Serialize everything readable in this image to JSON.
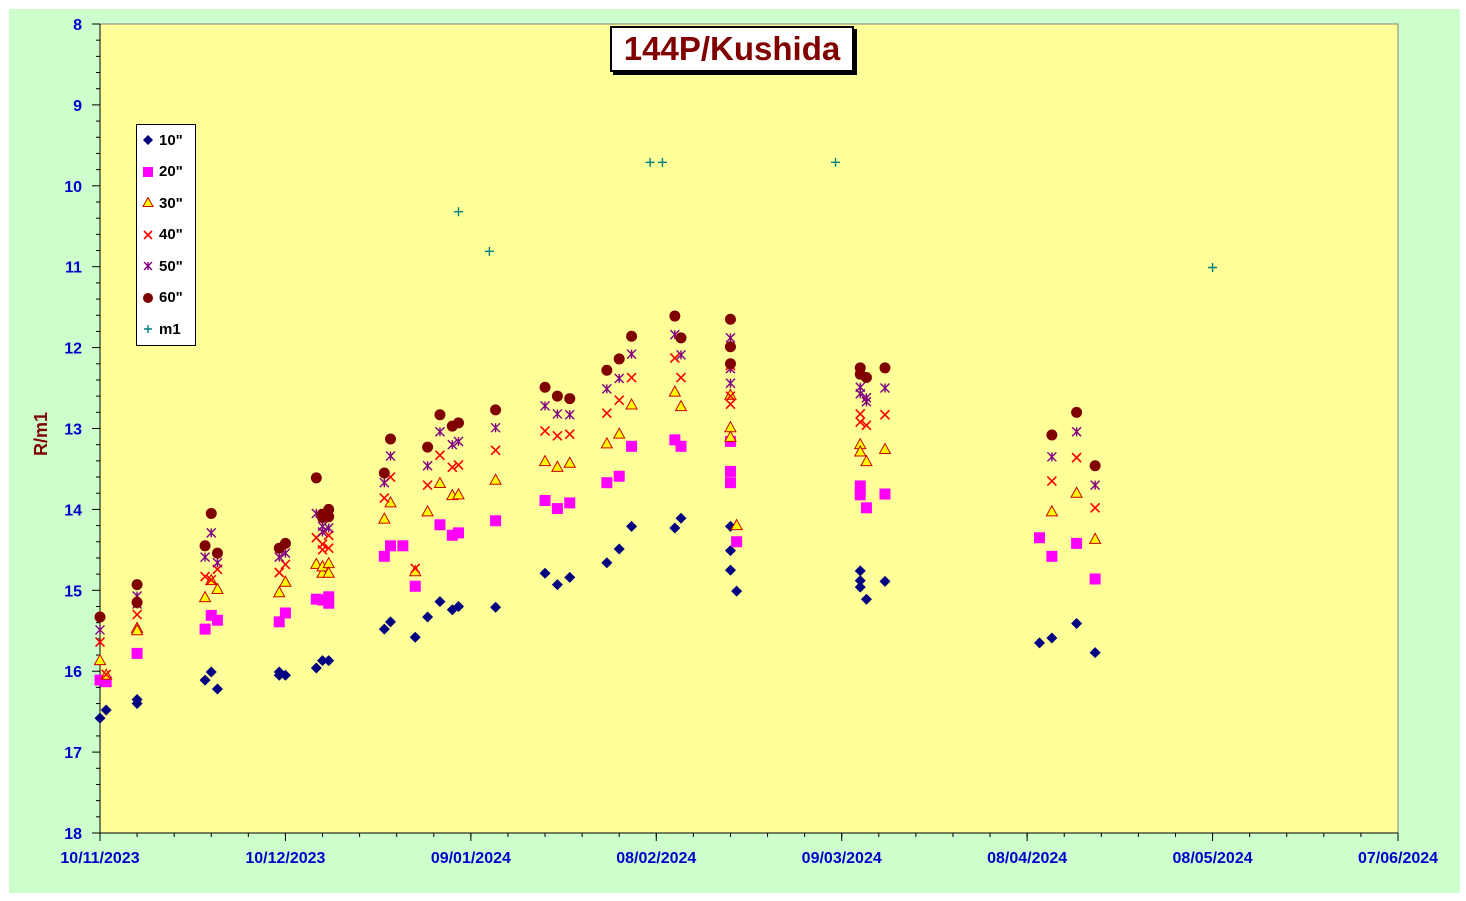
{
  "chart_data": {
    "type": "scatter",
    "title": "144P/Kushida",
    "xlabel": "",
    "ylabel": "R/m1",
    "y_inverted": true,
    "ylim": [
      8,
      18
    ],
    "yticks": [
      "8",
      "9",
      "10",
      "11",
      "12",
      "13",
      "14",
      "15",
      "16",
      "17",
      "18"
    ],
    "xlim": [
      "2023-11-10",
      "2024-06-07"
    ],
    "xticks": [
      "10/11/2023",
      "10/12/2023",
      "09/01/2024",
      "08/02/2024",
      "09/03/2024",
      "08/04/2024",
      "08/05/2024",
      "07/06/2024"
    ],
    "grid": false,
    "legend_position": "upper-left",
    "plot_background": "#ffff99",
    "outer_background": "#ccffcc",
    "series": [
      {
        "name": "10\"",
        "marker": "diamond",
        "color": "#000080",
        "points": [
          [
            "2023-11-10",
            16.58
          ],
          [
            "2023-11-11",
            16.48
          ],
          [
            "2023-11-16",
            16.35
          ],
          [
            "2023-11-16",
            16.4
          ],
          [
            "2023-11-27",
            16.11
          ],
          [
            "2023-11-28",
            16.01
          ],
          [
            "2023-11-29",
            16.22
          ],
          [
            "2023-12-09",
            16.01
          ],
          [
            "2023-12-09",
            16.05
          ],
          [
            "2023-12-10",
            16.05
          ],
          [
            "2023-12-15",
            15.96
          ],
          [
            "2023-12-16",
            15.87
          ],
          [
            "2023-12-17",
            15.87
          ],
          [
            "2023-12-26",
            15.48
          ],
          [
            "2023-12-27",
            15.39
          ],
          [
            "2023-12-31",
            15.58
          ],
          [
            "2024-01-02",
            15.33
          ],
          [
            "2024-01-04",
            15.14
          ],
          [
            "2024-01-06",
            15.24
          ],
          [
            "2024-01-07",
            15.2
          ],
          [
            "2024-01-13",
            15.21
          ],
          [
            "2024-01-21",
            14.79
          ],
          [
            "2024-01-23",
            14.93
          ],
          [
            "2024-01-25",
            14.84
          ],
          [
            "2024-01-31",
            14.66
          ],
          [
            "2024-02-02",
            14.49
          ],
          [
            "2024-02-04",
            14.21
          ],
          [
            "2024-02-11",
            14.23
          ],
          [
            "2024-02-12",
            14.11
          ],
          [
            "2024-02-20",
            14.51
          ],
          [
            "2024-02-20",
            14.75
          ],
          [
            "2024-02-20",
            14.21
          ],
          [
            "2024-02-21",
            15.01
          ],
          [
            "2024-03-12",
            14.76
          ],
          [
            "2024-03-12",
            14.88
          ],
          [
            "2024-03-12",
            14.96
          ],
          [
            "2024-03-13",
            15.11
          ],
          [
            "2024-03-16",
            14.89
          ],
          [
            "2024-04-10",
            15.65
          ],
          [
            "2024-04-12",
            15.59
          ],
          [
            "2024-04-16",
            15.41
          ],
          [
            "2024-04-19",
            15.77
          ]
        ]
      },
      {
        "name": "20\"",
        "marker": "square",
        "color": "#ff00ff",
        "points": [
          [
            "2023-11-10",
            16.11
          ],
          [
            "2023-11-11",
            16.13
          ],
          [
            "2023-11-16",
            15.78
          ],
          [
            "2023-11-27",
            15.48
          ],
          [
            "2023-11-28",
            15.31
          ],
          [
            "2023-11-29",
            15.37
          ],
          [
            "2023-12-09",
            15.39
          ],
          [
            "2023-12-10",
            15.28
          ],
          [
            "2023-12-15",
            15.11
          ],
          [
            "2023-12-16",
            15.12
          ],
          [
            "2023-12-17",
            15.08
          ],
          [
            "2023-12-17",
            15.16
          ],
          [
            "2023-12-26",
            14.58
          ],
          [
            "2023-12-27",
            14.45
          ],
          [
            "2023-12-29",
            14.45
          ],
          [
            "2023-12-31",
            14.95
          ],
          [
            "2024-01-04",
            14.19
          ],
          [
            "2024-01-06",
            14.32
          ],
          [
            "2024-01-07",
            14.29
          ],
          [
            "2024-01-13",
            14.14
          ],
          [
            "2024-01-21",
            13.89
          ],
          [
            "2024-01-23",
            13.99
          ],
          [
            "2024-01-25",
            13.92
          ],
          [
            "2024-01-31",
            13.67
          ],
          [
            "2024-02-02",
            13.59
          ],
          [
            "2024-02-04",
            13.22
          ],
          [
            "2024-02-11",
            13.14
          ],
          [
            "2024-02-12",
            13.22
          ],
          [
            "2024-02-20",
            13.16
          ],
          [
            "2024-02-20",
            13.53
          ],
          [
            "2024-02-20",
            13.67
          ],
          [
            "2024-02-21",
            14.4
          ],
          [
            "2024-03-12",
            13.71
          ],
          [
            "2024-03-12",
            13.82
          ],
          [
            "2024-03-13",
            13.98
          ],
          [
            "2024-03-16",
            13.81
          ],
          [
            "2024-04-10",
            14.35
          ],
          [
            "2024-04-12",
            14.58
          ],
          [
            "2024-04-16",
            14.42
          ],
          [
            "2024-04-19",
            14.86
          ]
        ]
      },
      {
        "name": "30\"",
        "marker": "triangle",
        "color": "#ffff00",
        "stroke": "#cc0000",
        "points": [
          [
            "2023-11-10",
            15.87
          ],
          [
            "2023-11-11",
            16.05
          ],
          [
            "2023-11-16",
            15.47
          ],
          [
            "2023-11-16",
            15.5
          ],
          [
            "2023-11-27",
            15.09
          ],
          [
            "2023-11-28",
            14.88
          ],
          [
            "2023-11-29",
            14.99
          ],
          [
            "2023-12-09",
            15.03
          ],
          [
            "2023-12-10",
            14.9
          ],
          [
            "2023-12-15",
            14.68
          ],
          [
            "2023-12-16",
            14.79
          ],
          [
            "2023-12-16",
            14.71
          ],
          [
            "2023-12-17",
            14.67
          ],
          [
            "2023-12-17",
            14.79
          ],
          [
            "2023-12-26",
            14.12
          ],
          [
            "2023-12-27",
            13.92
          ],
          [
            "2023-12-31",
            14.77
          ],
          [
            "2024-01-02",
            14.03
          ],
          [
            "2024-01-04",
            13.68
          ],
          [
            "2024-01-06",
            13.83
          ],
          [
            "2024-01-07",
            13.82
          ],
          [
            "2024-01-13",
            13.64
          ],
          [
            "2024-01-21",
            13.41
          ],
          [
            "2024-01-23",
            13.48
          ],
          [
            "2024-01-25",
            13.43
          ],
          [
            "2024-01-31",
            13.19
          ],
          [
            "2024-02-02",
            13.07
          ],
          [
            "2024-02-04",
            12.71
          ],
          [
            "2024-02-11",
            12.55
          ],
          [
            "2024-02-12",
            12.73
          ],
          [
            "2024-02-20",
            12.59
          ],
          [
            "2024-02-20",
            12.99
          ],
          [
            "2024-02-20",
            13.11
          ],
          [
            "2024-02-21",
            14.2
          ],
          [
            "2024-03-12",
            13.2
          ],
          [
            "2024-03-12",
            13.29
          ],
          [
            "2024-03-13",
            13.41
          ],
          [
            "2024-03-16",
            13.26
          ],
          [
            "2024-04-12",
            14.03
          ],
          [
            "2024-04-16",
            13.8
          ],
          [
            "2024-04-19",
            14.37
          ]
        ]
      },
      {
        "name": "40\"",
        "marker": "x",
        "color": "#ff0000",
        "points": [
          [
            "2023-11-10",
            15.64
          ],
          [
            "2023-11-11",
            16.04
          ],
          [
            "2023-11-16",
            15.3
          ],
          [
            "2023-11-27",
            14.83
          ],
          [
            "2023-11-28",
            14.87
          ],
          [
            "2023-11-29",
            14.74
          ],
          [
            "2023-12-09",
            14.78
          ],
          [
            "2023-12-10",
            14.68
          ],
          [
            "2023-12-15",
            14.35
          ],
          [
            "2023-12-16",
            14.5
          ],
          [
            "2023-12-16",
            14.43
          ],
          [
            "2023-12-17",
            14.48
          ],
          [
            "2023-12-17",
            14.32
          ],
          [
            "2023-12-26",
            13.86
          ],
          [
            "2023-12-27",
            13.6
          ],
          [
            "2023-12-31",
            14.73
          ],
          [
            "2024-01-02",
            13.7
          ],
          [
            "2024-01-04",
            13.33
          ],
          [
            "2024-01-06",
            13.48
          ],
          [
            "2024-01-07",
            13.45
          ],
          [
            "2024-01-13",
            13.27
          ],
          [
            "2024-01-21",
            13.03
          ],
          [
            "2024-01-23",
            13.09
          ],
          [
            "2024-01-25",
            13.07
          ],
          [
            "2024-01-31",
            12.81
          ],
          [
            "2024-02-02",
            12.65
          ],
          [
            "2024-02-04",
            12.37
          ],
          [
            "2024-02-11",
            12.13
          ],
          [
            "2024-02-12",
            12.37
          ],
          [
            "2024-02-20",
            12.22
          ],
          [
            "2024-02-20",
            12.6
          ],
          [
            "2024-02-20",
            12.7
          ],
          [
            "2024-03-12",
            12.82
          ],
          [
            "2024-03-12",
            12.92
          ],
          [
            "2024-03-13",
            12.96
          ],
          [
            "2024-03-16",
            12.83
          ],
          [
            "2024-04-12",
            13.65
          ],
          [
            "2024-04-16",
            13.36
          ],
          [
            "2024-04-19",
            13.98
          ]
        ]
      },
      {
        "name": "50\"",
        "marker": "star",
        "color": "#800080",
        "points": [
          [
            "2023-11-10",
            15.49
          ],
          [
            "2023-11-16",
            15.07
          ],
          [
            "2023-11-16",
            15.17
          ],
          [
            "2023-11-27",
            14.59
          ],
          [
            "2023-11-28",
            14.29
          ],
          [
            "2023-11-29",
            14.66
          ],
          [
            "2023-12-09",
            14.59
          ],
          [
            "2023-12-10",
            14.54
          ],
          [
            "2023-12-15",
            14.05
          ],
          [
            "2023-12-16",
            14.28
          ],
          [
            "2023-12-16",
            14.21
          ],
          [
            "2023-12-17",
            14.23
          ],
          [
            "2023-12-26",
            13.67
          ],
          [
            "2023-12-27",
            13.34
          ],
          [
            "2024-01-02",
            13.46
          ],
          [
            "2024-01-04",
            13.04
          ],
          [
            "2024-01-06",
            13.2
          ],
          [
            "2024-01-07",
            13.16
          ],
          [
            "2024-01-13",
            12.99
          ],
          [
            "2024-01-21",
            12.72
          ],
          [
            "2024-01-23",
            12.82
          ],
          [
            "2024-01-25",
            12.83
          ],
          [
            "2024-01-31",
            12.51
          ],
          [
            "2024-02-02",
            12.38
          ],
          [
            "2024-02-04",
            12.08
          ],
          [
            "2024-02-11",
            11.84
          ],
          [
            "2024-02-12",
            12.09
          ],
          [
            "2024-02-20",
            11.88
          ],
          [
            "2024-02-20",
            12.26
          ],
          [
            "2024-02-20",
            12.44
          ],
          [
            "2024-03-12",
            12.49
          ],
          [
            "2024-03-12",
            12.57
          ],
          [
            "2024-03-13",
            12.62
          ],
          [
            "2024-03-13",
            12.67
          ],
          [
            "2024-03-16",
            12.5
          ],
          [
            "2024-04-12",
            13.35
          ],
          [
            "2024-04-16",
            13.04
          ],
          [
            "2024-04-19",
            13.7
          ]
        ]
      },
      {
        "name": "60\"",
        "marker": "circle",
        "color": "#800000",
        "points": [
          [
            "2023-11-10",
            15.33
          ],
          [
            "2023-11-16",
            14.93
          ],
          [
            "2023-11-16",
            15.15
          ],
          [
            "2023-11-27",
            14.45
          ],
          [
            "2023-11-28",
            14.05
          ],
          [
            "2023-11-29",
            14.54
          ],
          [
            "2023-12-09",
            14.48
          ],
          [
            "2023-12-10",
            14.42
          ],
          [
            "2023-12-15",
            13.61
          ],
          [
            "2023-12-16",
            14.1
          ],
          [
            "2023-12-16",
            14.06
          ],
          [
            "2023-12-17",
            14.0
          ],
          [
            "2023-12-17",
            14.09
          ],
          [
            "2023-12-26",
            13.55
          ],
          [
            "2023-12-27",
            13.13
          ],
          [
            "2024-01-02",
            13.23
          ],
          [
            "2024-01-04",
            12.83
          ],
          [
            "2024-01-06",
            12.97
          ],
          [
            "2024-01-07",
            12.93
          ],
          [
            "2024-01-13",
            12.77
          ],
          [
            "2024-01-21",
            12.49
          ],
          [
            "2024-01-23",
            12.6
          ],
          [
            "2024-01-25",
            12.63
          ],
          [
            "2024-01-31",
            12.28
          ],
          [
            "2024-02-02",
            12.14
          ],
          [
            "2024-02-04",
            11.86
          ],
          [
            "2024-02-11",
            11.61
          ],
          [
            "2024-02-12",
            11.88
          ],
          [
            "2024-02-20",
            11.65
          ],
          [
            "2024-02-20",
            11.99
          ],
          [
            "2024-02-20",
            12.2
          ],
          [
            "2024-03-12",
            12.25
          ],
          [
            "2024-03-12",
            12.33
          ],
          [
            "2024-03-13",
            12.37
          ],
          [
            "2024-03-16",
            12.25
          ],
          [
            "2024-04-12",
            13.08
          ],
          [
            "2024-04-16",
            12.8
          ],
          [
            "2024-04-19",
            13.46
          ]
        ]
      },
      {
        "name": "m1",
        "marker": "plus",
        "color": "#008080",
        "points": [
          [
            "2024-01-07",
            10.32
          ],
          [
            "2024-01-12",
            10.81
          ],
          [
            "2024-02-07",
            9.71
          ],
          [
            "2024-02-09",
            9.71
          ],
          [
            "2024-03-08",
            9.71
          ],
          [
            "2024-05-08",
            11.01
          ]
        ]
      }
    ]
  }
}
